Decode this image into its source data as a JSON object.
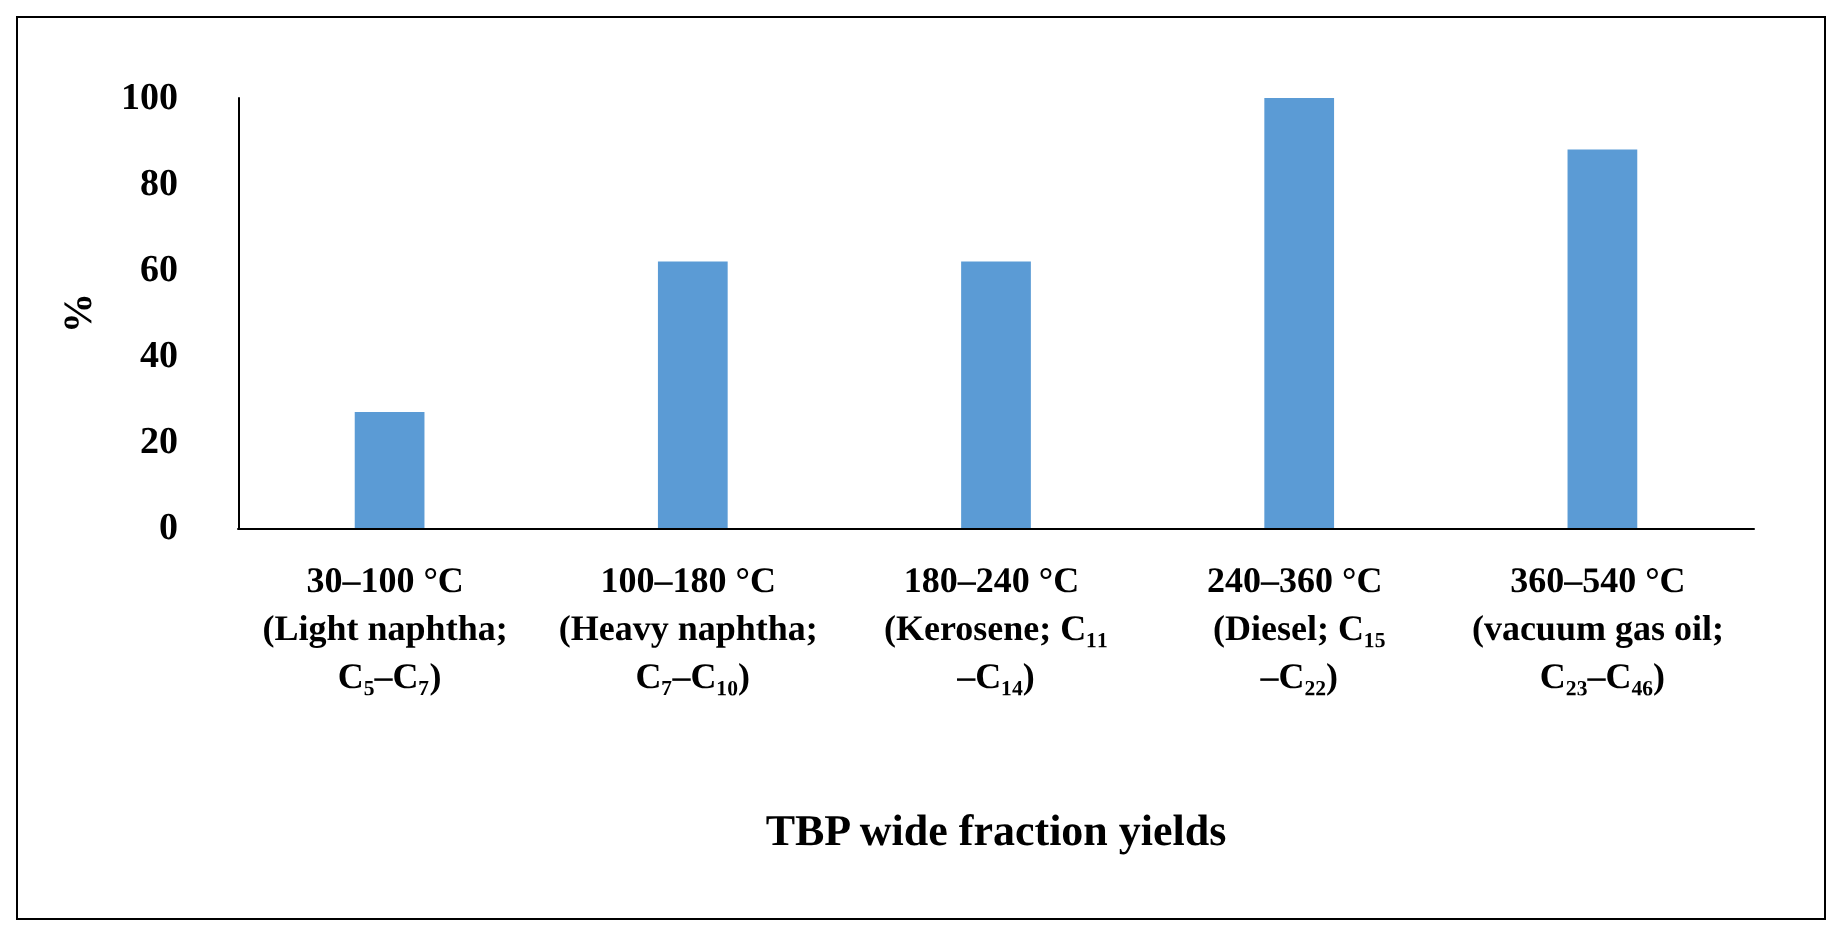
{
  "chart_data": {
    "type": "bar",
    "xlabel": "TBP wide fraction yields",
    "ylabel": "%",
    "categories": [
      "30–100 °C (Light naphtha; C₅–C₇)",
      "100–180 °C (Heavy naphtha; C₇–C₁₀)",
      "180–240 °C (Kerosene; C₁₁–C₁₄)",
      "240–360 °C (Diesel; C₁₅–C₂₂)",
      "360–540 °C (vacuum gas oil; C₂₃–C₄₆)"
    ],
    "values": [
      27,
      62,
      62,
      100,
      88
    ],
    "color": "#5b9bd5",
    "ylim": [
      0,
      100
    ],
    "yticks": [
      0,
      20,
      40,
      60,
      80,
      100
    ]
  }
}
